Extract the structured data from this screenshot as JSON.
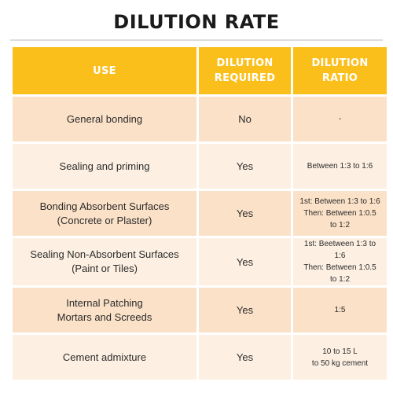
{
  "title": "DILUTION RATE",
  "headers": {
    "use": "USE",
    "required_line1": "DILUTION",
    "required_line2": "REQUIRED",
    "ratio_line1": "DILUTION",
    "ratio_line2": "RATIO"
  },
  "rows": [
    {
      "use": [
        "General bonding"
      ],
      "required": "No",
      "ratio": [
        "-"
      ]
    },
    {
      "use": [
        "Sealing and priming"
      ],
      "required": "Yes",
      "ratio": [
        "Between 1:3 to 1:6"
      ]
    },
    {
      "use": [
        "Bonding Absorbent Surfaces",
        "(Concrete or Plaster)"
      ],
      "required": "Yes",
      "ratio": [
        "1st: Between 1:3 to 1:6",
        "Then: Between 1:0.5",
        "to 1:2"
      ]
    },
    {
      "use": [
        "Sealing Non-Absorbent Surfaces",
        "(Paint or Tiles)"
      ],
      "required": "Yes",
      "ratio": [
        "1st: Beetween 1:3 to",
        "1:6",
        "Then: Between 1:0.5",
        "to 1:2"
      ]
    },
    {
      "use": [
        "Internal Patching",
        "Mortars and Screeds"
      ],
      "required": "Yes",
      "ratio": [
        "1:5"
      ]
    },
    {
      "use": [
        "Cement admixture"
      ],
      "required": "Yes",
      "ratio": [
        "10 to 15 L",
        "to 50 kg cement"
      ]
    }
  ],
  "colors": {
    "header_bg": "#fbbf1c",
    "row_odd_bg": "#fbe1c8",
    "row_even_bg": "#fdf0e3"
  }
}
